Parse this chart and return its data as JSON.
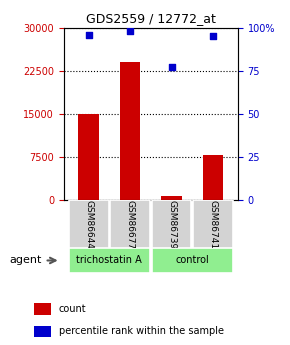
{
  "title": "GDS2559 / 12772_at",
  "samples": [
    "GSM86644",
    "GSM86677",
    "GSM86739",
    "GSM86741"
  ],
  "counts": [
    15000,
    24000,
    800,
    7800
  ],
  "percentiles": [
    96,
    98,
    77,
    95
  ],
  "groups": [
    "trichostatin A",
    "trichostatin A",
    "control",
    "control"
  ],
  "group_colors": {
    "trichostatin A": "#90EE90",
    "control": "#90EE90"
  },
  "bar_color": "#cc0000",
  "dot_color": "#0000cc",
  "ylim_left": [
    0,
    30000
  ],
  "ylim_right": [
    0,
    100
  ],
  "yticks_left": [
    0,
    7500,
    15000,
    22500,
    30000
  ],
  "yticks_right": [
    0,
    25,
    50,
    75,
    100
  ],
  "ylabel_left_color": "#cc0000",
  "ylabel_right_color": "#0000cc",
  "xlabel_rotation": -90,
  "bg_color": "#f0f0f0",
  "group_label_trichostatin": "trichostatin A",
  "group_label_control": "control",
  "agent_label": "agent",
  "legend_count": "count",
  "legend_percentile": "percentile rank within the sample"
}
